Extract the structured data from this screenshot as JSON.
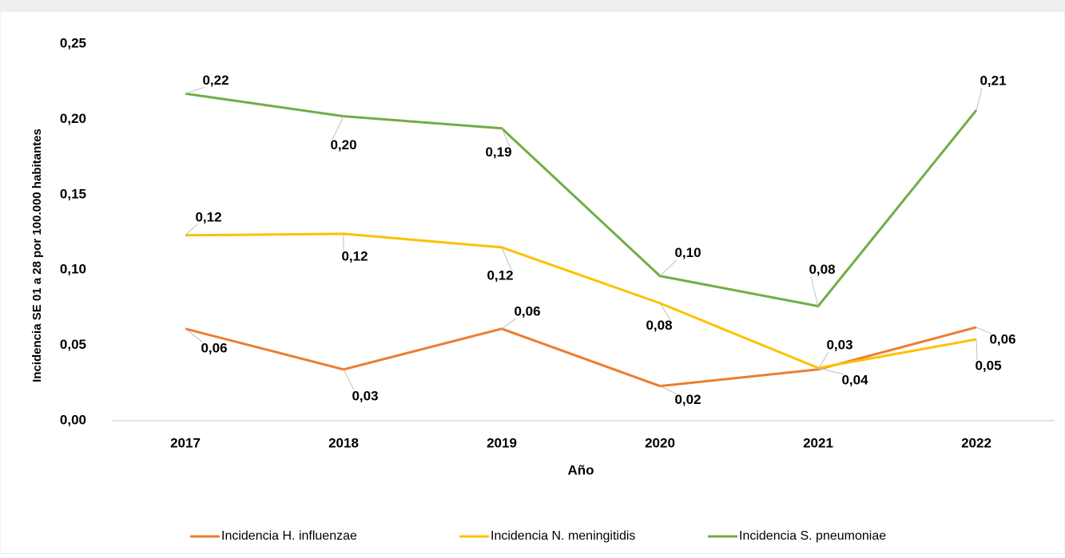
{
  "chart_data": {
    "type": "line",
    "categories": [
      "2017",
      "2018",
      "2019",
      "2020",
      "2021",
      "2022"
    ],
    "series": [
      {
        "name": "Incidencia H. influenzae",
        "color": "#ed7d31",
        "values": [
          0.061,
          0.034,
          0.061,
          0.023,
          0.034,
          0.062
        ],
        "value_labels": [
          "0,06",
          "0,03",
          "0,06",
          "0,02",
          "0,03",
          "0,06"
        ]
      },
      {
        "name": "Incidencia N. meningitidis",
        "color": "#ffc000",
        "values": [
          0.123,
          0.124,
          0.115,
          0.078,
          0.035,
          0.054
        ],
        "value_labels": [
          "0,12",
          "0,12",
          "0,12",
          "0,08",
          "0,04",
          "0,05"
        ]
      },
      {
        "name": "Incidencia S. pneumoniae",
        "color": "#70ad47",
        "values": [
          0.217,
          0.202,
          0.194,
          0.096,
          0.076,
          0.206
        ],
        "value_labels": [
          "0,22",
          "0,20",
          "0,19",
          "0,10",
          "0,08",
          "0,21"
        ]
      }
    ],
    "x_label": "Año",
    "y_label": "Incidencia SE 01 a 28  por 100.000 habitantes",
    "ylim": [
      0,
      0.25
    ],
    "yticks": [
      {
        "value": 0,
        "label": "0,00"
      },
      {
        "value": 0.05,
        "label": "0,05"
      },
      {
        "value": 0.1,
        "label": "0,10"
      },
      {
        "value": 0.15,
        "label": "0,15"
      },
      {
        "value": 0.2,
        "label": "0,20"
      },
      {
        "value": 0.25,
        "label": "0,25"
      }
    ],
    "legend": "bottom"
  }
}
